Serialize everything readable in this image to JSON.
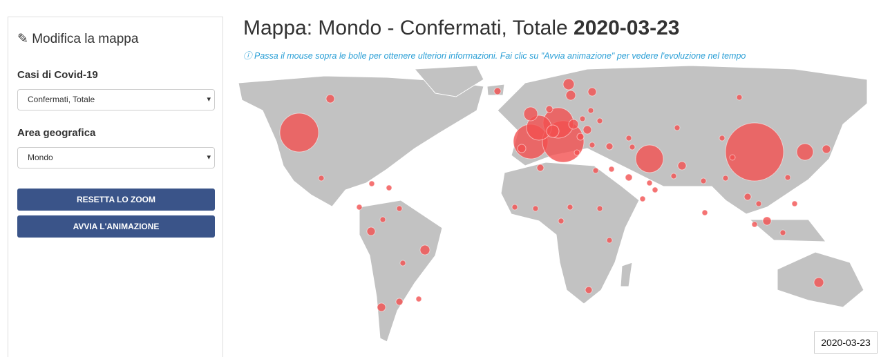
{
  "sidebar": {
    "title": "Modifica la mappa",
    "cases_label": "Casi di Covid-19",
    "cases_select": "Confermati, Totale",
    "area_label": "Area geografica",
    "area_select": "Mondo",
    "reset_button": "RESETTA LO ZOOM",
    "animate_button": "AVVIA L'ANIMAZIONE"
  },
  "header": {
    "title": "Mappa: Mondo - Confermati, Totale",
    "date": "2020-03-23",
    "info": "Passa il mouse sopra le bolle per ottenere ulteriori informazioni. Fai clic su \"Avvia animazione\" per vedere l'evoluzione nel tempo"
  },
  "map": {
    "date_badge": "2020-03-23"
  }
}
